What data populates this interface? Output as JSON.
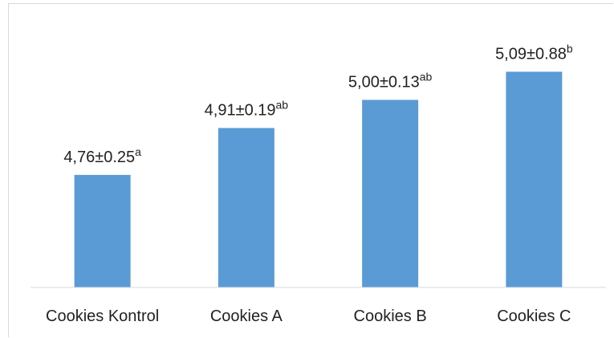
{
  "chart_data": {
    "type": "bar",
    "categories": [
      "Cookies Kontrol",
      "Cookies A",
      "Cookies B",
      "Cookies C"
    ],
    "values": [
      4.76,
      4.91,
      5.0,
      5.09
    ],
    "errors": [
      0.25,
      0.19,
      0.13,
      0.88
    ],
    "data_labels": [
      "4,76±0.25",
      "4,91±0.19",
      "5,00±0.13",
      "5,09±0.88"
    ],
    "significance": [
      "a",
      "ab",
      "ab",
      "b"
    ],
    "title": "",
    "xlabel": "",
    "ylabel": "",
    "ylim": [
      4.4,
      5.15
    ],
    "grid": false,
    "legend": "none",
    "bar_color": "#5b9bd5"
  }
}
